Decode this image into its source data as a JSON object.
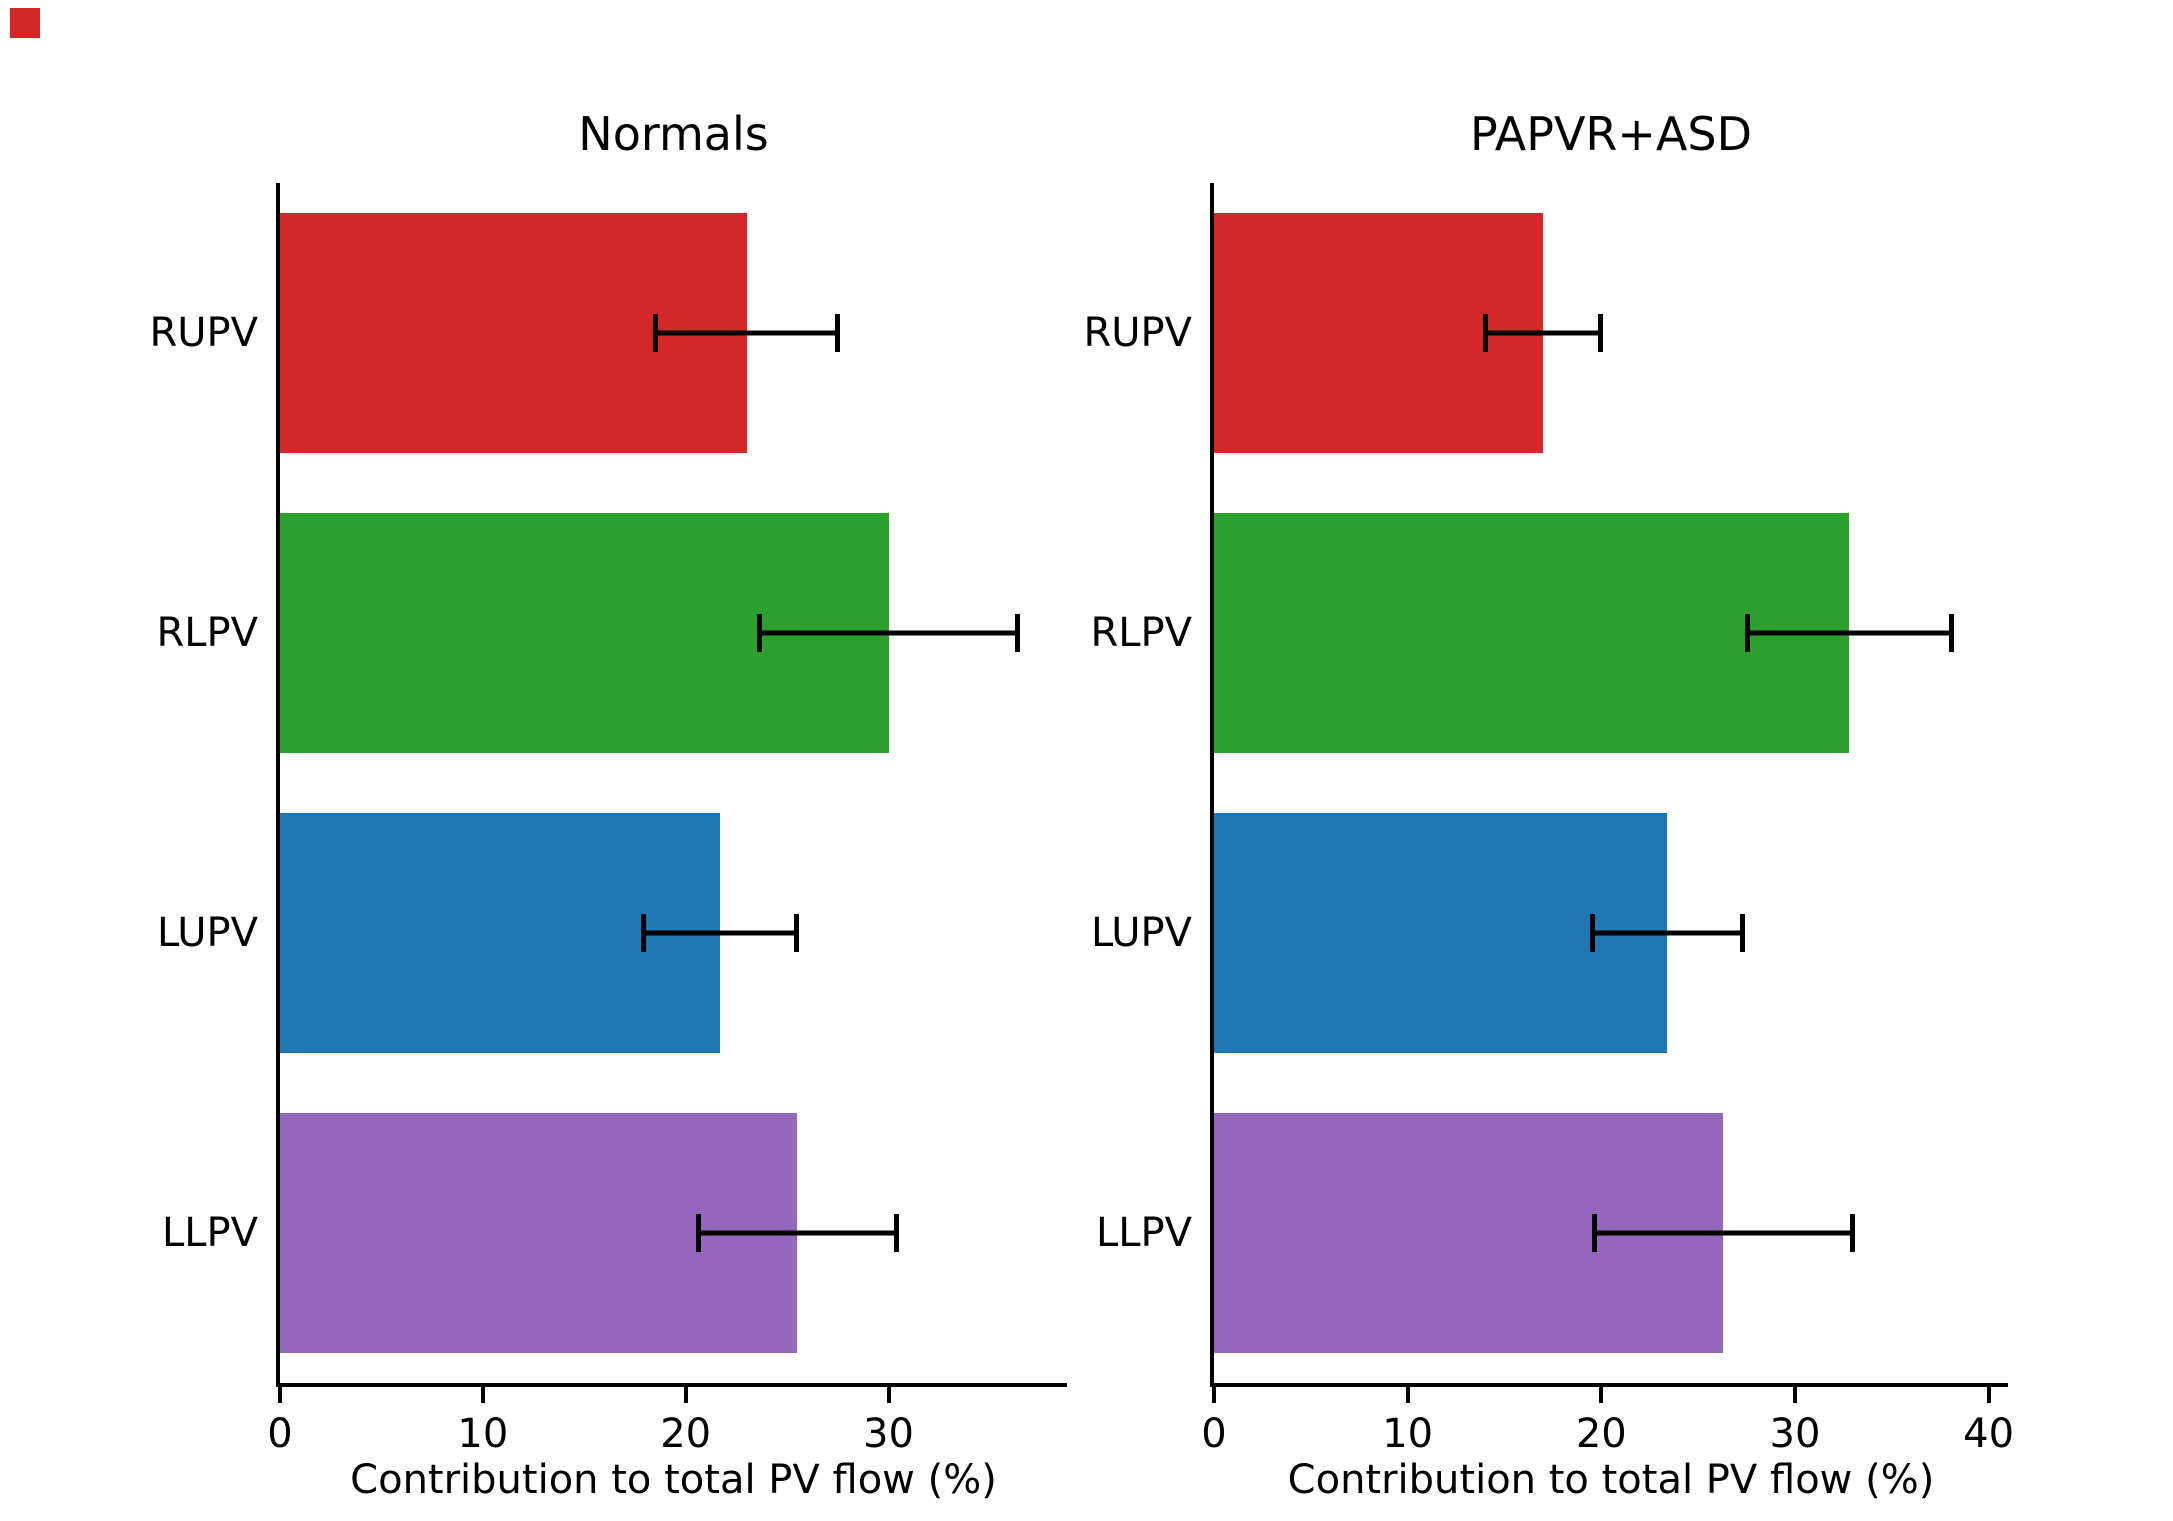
{
  "figure": {
    "background": "#ffffff",
    "corner_marker_color": "#d62728"
  },
  "chart_data": [
    {
      "type": "bar",
      "orientation": "horizontal",
      "title": "Normals",
      "xlabel": "Contribution to total PV flow (%)",
      "categories": [
        "RUPV",
        "RLPV",
        "LUPV",
        "LLPV"
      ],
      "values": [
        23.0,
        30.0,
        21.7,
        25.5
      ],
      "errors": [
        4.6,
        6.5,
        3.9,
        5.0
      ],
      "bar_colors": [
        "#d62728",
        "#2ca02c",
        "#1f77b4",
        "#9467bd"
      ],
      "error_color": "#000000",
      "xlim": [
        0,
        38.8
      ],
      "xticks": [
        0,
        10,
        20,
        30
      ],
      "grid": false,
      "legend": null,
      "bar_height_fraction": 0.8
    },
    {
      "type": "bar",
      "orientation": "horizontal",
      "title": "PAPVR+ASD",
      "xlabel": "Contribution to total PV flow (%)",
      "categories": [
        "RUPV",
        "RLPV",
        "LUPV",
        "LLPV"
      ],
      "values": [
        17.0,
        32.8,
        23.4,
        26.3
      ],
      "errors": [
        3.1,
        5.4,
        4.0,
        6.8
      ],
      "bar_colors": [
        "#d62728",
        "#2ca02c",
        "#1f77b4",
        "#9467bd"
      ],
      "error_color": "#000000",
      "xlim": [
        0,
        41.0
      ],
      "xticks": [
        0,
        10,
        20,
        30,
        40
      ],
      "grid": false,
      "legend": null,
      "bar_height_fraction": 0.8
    }
  ]
}
